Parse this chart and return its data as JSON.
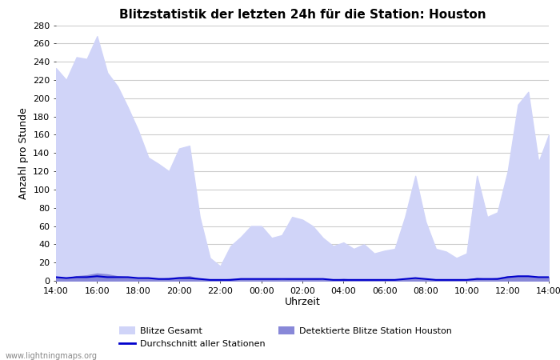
{
  "title": "Blitzstatistik der letzten 24h für die Station: Houston",
  "xlabel": "Uhrzeit",
  "ylabel": "Anzahl pro Stunde",
  "xlim": [
    0,
    24
  ],
  "ylim": [
    0,
    280
  ],
  "yticks": [
    0,
    20,
    40,
    60,
    80,
    100,
    120,
    140,
    160,
    180,
    200,
    220,
    240,
    260,
    280
  ],
  "xtick_labels": [
    "14:00",
    "16:00",
    "18:00",
    "20:00",
    "22:00",
    "00:00",
    "02:00",
    "04:00",
    "06:00",
    "08:00",
    "10:00",
    "12:00",
    "14:00"
  ],
  "xtick_positions": [
    0,
    2,
    4,
    6,
    8,
    10,
    12,
    14,
    16,
    18,
    20,
    22,
    24
  ],
  "background_color": "#ffffff",
  "plot_bg_color": "#ffffff",
  "grid_color": "#cccccc",
  "color_gesamt": "#d0d4f8",
  "color_detected": "#8888d8",
  "color_avg_line": "#0000cc",
  "watermark": "www.lightningmaps.org",
  "blitze_gesamt": [
    233,
    220,
    245,
    243,
    268,
    228,
    213,
    190,
    165,
    135,
    128,
    120,
    145,
    148,
    70,
    25,
    16,
    38,
    48,
    60,
    60,
    47,
    50,
    70,
    67,
    60,
    47,
    38,
    42,
    35,
    40,
    30,
    33,
    35,
    70,
    115,
    65,
    35,
    32,
    25,
    30,
    115,
    70,
    75,
    120,
    193,
    207,
    130,
    160
  ],
  "blitze_detected": [
    4,
    3,
    5,
    6,
    8,
    7,
    5,
    4,
    3,
    3,
    2,
    3,
    4,
    5,
    2,
    1,
    1,
    2,
    2,
    2,
    2,
    2,
    1,
    2,
    2,
    2,
    1,
    1,
    2,
    1,
    1,
    1,
    1,
    1,
    2,
    3,
    2,
    1,
    1,
    1,
    1,
    3,
    2,
    3,
    5,
    5,
    5,
    4,
    4
  ],
  "avg_stations": [
    4,
    3,
    4,
    4,
    5,
    4,
    4,
    4,
    3,
    3,
    2,
    2,
    3,
    3,
    2,
    1,
    1,
    1,
    2,
    2,
    2,
    2,
    2,
    2,
    2,
    2,
    2,
    1,
    1,
    1,
    1,
    1,
    1,
    1,
    2,
    3,
    2,
    1,
    1,
    1,
    1,
    2,
    2,
    2,
    4,
    5,
    5,
    4,
    4
  ],
  "title_fontsize": 11,
  "axis_fontsize": 9,
  "tick_fontsize": 8
}
